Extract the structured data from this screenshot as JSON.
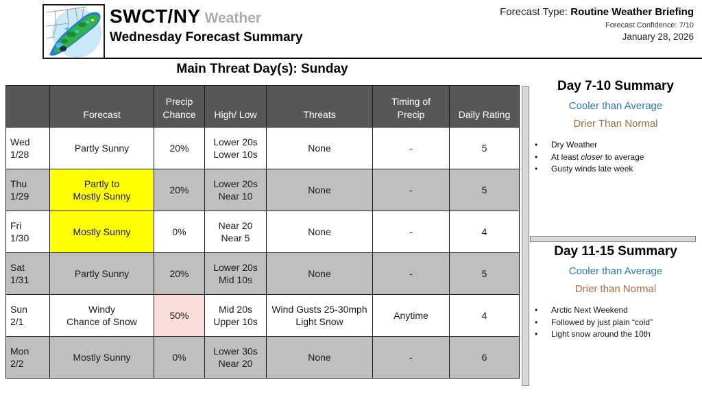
{
  "header": {
    "brand": "SWCT/NY",
    "brand_suffix": "Weather",
    "subtitle": "Wednesday Forecast Summary",
    "forecast_type_label": "Forecast Type: ",
    "forecast_type_value": "Routine Weather Briefing",
    "confidence": "Forecast Confidence: 7/10",
    "date": "January 28, 2026"
  },
  "main_threat_title": "Main Threat Day(s): Sunday",
  "table": {
    "columns": [
      [
        ""
      ],
      [
        "Forecast"
      ],
      [
        "Precip",
        "Chance"
      ],
      [
        "High/ Low"
      ],
      [
        "Threats"
      ],
      [
        "Timing of",
        "Precip"
      ],
      [
        "Daily Rating"
      ]
    ],
    "rows": [
      {
        "day": [
          "Wed",
          "1/28"
        ],
        "forecast": [
          "Partly Sunny"
        ],
        "forecast_highlight": false,
        "precip": "20%",
        "precip_highlight": false,
        "high_low": [
          "Lower 20s",
          "Lower 10s"
        ],
        "threats": [
          "None"
        ],
        "timing": "-",
        "rating": "5",
        "shaded": false
      },
      {
        "day": [
          "Thu",
          "1/29"
        ],
        "forecast": [
          "Partly to",
          "Mostly Sunny"
        ],
        "forecast_highlight": true,
        "precip": "20%",
        "precip_highlight": false,
        "high_low": [
          "Lower 20s",
          "Near 10"
        ],
        "threats": [
          "None"
        ],
        "timing": "-",
        "rating": "5",
        "shaded": true
      },
      {
        "day": [
          "Fri",
          "1/30"
        ],
        "forecast": [
          "Mostly Sunny"
        ],
        "forecast_highlight": true,
        "precip": "0%",
        "precip_highlight": false,
        "high_low": [
          "Near 20",
          "Near 5"
        ],
        "threats": [
          "None"
        ],
        "timing": "-",
        "rating": "4",
        "shaded": false
      },
      {
        "day": [
          "Sat",
          "1/31"
        ],
        "forecast": [
          "Partly Sunny"
        ],
        "forecast_highlight": false,
        "precip": "20%",
        "precip_highlight": false,
        "high_low": [
          "Lower 20s",
          "Mid 10s"
        ],
        "threats": [
          "None"
        ],
        "timing": "-",
        "rating": "5",
        "shaded": true
      },
      {
        "day": [
          "Sun",
          "2/1"
        ],
        "forecast": [
          "Windy",
          "Chance of Snow"
        ],
        "forecast_highlight": false,
        "precip": "50%",
        "precip_highlight": true,
        "high_low": [
          "Mid 20s",
          "Upper 10s"
        ],
        "threats": [
          "Wind Gusts 25-30mph",
          "Light Snow"
        ],
        "timing": "Anytime",
        "rating": "4",
        "shaded": false
      },
      {
        "day": [
          "Mon",
          "2/2"
        ],
        "forecast": [
          "Mostly Sunny"
        ],
        "forecast_highlight": false,
        "precip": "0%",
        "precip_highlight": false,
        "high_low": [
          "Lower 30s",
          "Near 20"
        ],
        "threats": [
          "None"
        ],
        "timing": "-",
        "rating": "6",
        "shaded": true
      }
    ]
  },
  "day7_10": {
    "title": "Day 7-10 Summary",
    "line1": "Cooler than Average",
    "line2": "Drier Than Normal",
    "bullets": [
      "Dry Weather",
      {
        "pre": "At least ",
        "em": "closer",
        "post": " to average"
      },
      "Gusty winds late week"
    ]
  },
  "day11_15": {
    "title": "Day 11-15 Summary",
    "line1": "Cooler than Average",
    "line2": "Drier than Normal",
    "bullets": [
      "Arctic Next Weekend",
      "Followed by just plain “cold”",
      "Light snow around the 10th"
    ]
  },
  "colors": {
    "header_gray": "#575757",
    "row_gray": "#bfbfbf",
    "highlight_yellow": "#ffff00",
    "highlight_pink": "#fbdedb",
    "accent_blue": "#2e75b6",
    "accent_brown": "#a86b42",
    "bar_gray": "#d9d9d9"
  }
}
